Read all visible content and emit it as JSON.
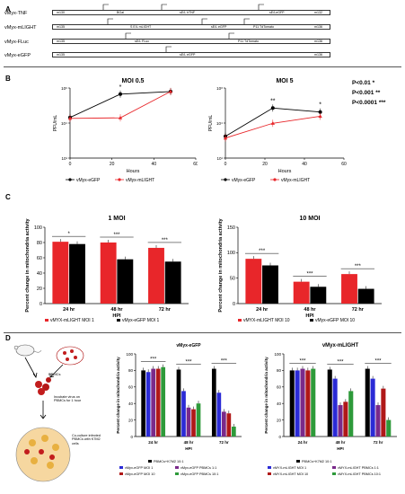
{
  "panel_letters": [
    "A",
    "B",
    "C",
    "D"
  ],
  "constructs": [
    {
      "name": "vMyx-TNF",
      "left_flank": "m130",
      "segments": [
        "BGal",
        "sE/L hTNF",
        "sE/LeGFP"
      ],
      "right_flank": "m132"
    },
    {
      "name": "vMyx-mLIGHT",
      "left_flank": "m135",
      "segments": [
        "S E/L mLIGHT",
        "sE/L eGFP",
        "P11 TdTomato"
      ],
      "right_flank": "m136"
    },
    {
      "name": "vMyx-FLuc",
      "left_flank": "m135",
      "segments": [
        "sE/L FLuc",
        "P11 TdTomato"
      ],
      "right_flank": "m136"
    },
    {
      "name": "vMyx-eGFP",
      "left_flank": "m135",
      "segments": [
        "sE/L eGFP"
      ],
      "right_flank": "m136"
    }
  ],
  "pvalues": [
    "P<0.01 *",
    "P<0.001 **",
    "P<0.0001 ***"
  ],
  "legend_b": [
    "vMyx-eGFP",
    "vMyx-mLIGHT"
  ],
  "legend_c_left": [
    "vMYX-mLIGHT MOI 1",
    "vMyx-eGFP MOI 1"
  ],
  "legend_c_right": [
    "vMYX-mLIGHT MOI 10",
    "vMyx-eGFP MOI 10"
  ],
  "legend_d_left": [
    "PBMCs+K7M2 10:1",
    "vMyx-eGFP MOI 1",
    "vMyx-eGFP PBMCs 1:1",
    "vMyx-eGFP MOI 10",
    "vMyx-eGFP PBMCs 10:1"
  ],
  "legend_d_right": [
    "PBMCs+K7M2 10:1",
    "vMYX-mLIGHT MOI 1",
    "vMYX-mLIGHT PBMCs 1:1",
    "vMYX-mLIGHT MOI 10",
    "vMYX-mLIGHT PBMCs 10:1"
  ],
  "schematic_d": {
    "pbmc": "PBMCs",
    "incubate": "Incubate virus on PBMCs for 1 hour",
    "coculture": "Co-culture infected PBMCs with K7M2 cells"
  },
  "colors": {
    "black": "#000000",
    "red": "#e8262a",
    "blue": "#2b2bd6",
    "purple": "#7a2a8a",
    "green": "#2e9a3a",
    "darkred": "#b01818",
    "grey": "#888888"
  },
  "chart_data": [
    {
      "type": "line",
      "title": "MOI 0.5",
      "xlabel": "Hours",
      "ylabel": "PFU/mL",
      "x": [
        0,
        24,
        48
      ],
      "xlim": [
        0,
        60
      ],
      "xticks": [
        0,
        20,
        40,
        60
      ],
      "ylim": [
        1,
        1000000
      ],
      "yscale": "log",
      "ytick_labels": [
        "10¹",
        "10⁴",
        "10⁶"
      ],
      "series": [
        {
          "name": "vMyx-eGFP",
          "values": [
            3000,
            300000,
            500000
          ]
        },
        {
          "name": "vMyx-mLIGHT",
          "values": [
            2500,
            2800,
            500000
          ]
        }
      ],
      "annotations": [
        {
          "x": 24,
          "text": "*"
        }
      ]
    },
    {
      "type": "line",
      "title": "MOI 5",
      "xlabel": "Hours",
      "ylabel": "PFU/mL",
      "x": [
        0,
        24,
        48
      ],
      "xlim": [
        0,
        60
      ],
      "xticks": [
        0,
        20,
        40,
        60
      ],
      "ylim": [
        10,
        100000000
      ],
      "yscale": "log",
      "ytick_labels": [
        "10¹",
        "10⁴",
        "10⁸"
      ],
      "series": [
        {
          "name": "vMyx-eGFP",
          "values": [
            1500,
            1000000,
            400000
          ]
        },
        {
          "name": "vMyx-mLIGHT",
          "values": [
            1000,
            30000,
            150000
          ]
        }
      ],
      "annotations": [
        {
          "x": 24,
          "text": "**"
        },
        {
          "x": 48,
          "text": "*"
        }
      ]
    },
    {
      "type": "bar",
      "title": "1 MOI",
      "xlabel": "HPI",
      "ylabel": "Percent change in mitochondria activity",
      "categories": [
        "24 hr",
        "48 hr",
        "72 hr"
      ],
      "ylim": [
        0,
        100
      ],
      "yticks": [
        0,
        20,
        40,
        60,
        80,
        100
      ],
      "series": [
        {
          "name": "vMYX-mLIGHT MOI 1",
          "values": [
            81,
            80,
            73
          ]
        },
        {
          "name": "vMyx-eGFP MOI 1",
          "values": [
            78,
            58,
            55
          ]
        }
      ],
      "annotations": [
        "*",
        "***",
        "***"
      ]
    },
    {
      "type": "bar",
      "title": "10 MOI",
      "xlabel": "HPI",
      "ylabel": "Percent change in mitochondria activity",
      "categories": [
        "24 hr",
        "48 hr",
        "72 hr"
      ],
      "ylim": [
        0,
        150
      ],
      "yticks": [
        0,
        50,
        100,
        150
      ],
      "series": [
        {
          "name": "vMYX-mLIGHT MOI 10",
          "values": [
            88,
            43,
            58
          ]
        },
        {
          "name": "vMyx-eGFP MOI 10",
          "values": [
            75,
            33,
            29
          ]
        }
      ],
      "annotations": [
        "***",
        "***",
        "***"
      ]
    },
    {
      "type": "bar",
      "title": "vMyx-eGFP",
      "xlabel": "HPI",
      "ylabel": "Percent change in mitochondria activity",
      "categories": [
        "24 hr",
        "48 hr",
        "72 hr"
      ],
      "ylim": [
        0,
        100
      ],
      "yticks": [
        0,
        20,
        40,
        60,
        80,
        100
      ],
      "series": [
        {
          "name": "PBMCs+K7M2 10:1",
          "values": [
            80,
            81,
            82
          ]
        },
        {
          "name": "vMyx-eGFP MOI 1",
          "values": [
            78,
            55,
            53
          ]
        },
        {
          "name": "vMyx-eGFP PBMCs 1:1",
          "values": [
            82,
            35,
            30
          ]
        },
        {
          "name": "vMyx-eGFP MOI 10",
          "values": [
            82,
            33,
            28
          ]
        },
        {
          "name": "vMyx-eGFP PBMCs 10:1",
          "values": [
            84,
            40,
            12
          ]
        }
      ],
      "annotations": [
        "***",
        "***",
        "***"
      ]
    },
    {
      "type": "bar",
      "title": "vMyx-mLIGHT",
      "xlabel": "HPI",
      "ylabel": "Percent change in mitochondria activity",
      "categories": [
        "24 hr",
        "48 hr",
        "72 hr"
      ],
      "ylim": [
        0,
        100
      ],
      "yticks": [
        0,
        20,
        40,
        60,
        80,
        100
      ],
      "series": [
        {
          "name": "PBMCs+K7M2 10:1",
          "values": [
            80,
            81,
            82
          ]
        },
        {
          "name": "vMYX-mLIGHT MOI 1",
          "values": [
            80,
            70,
            70
          ]
        },
        {
          "name": "vMYX-mLIGHT PBMCs 1:1",
          "values": [
            82,
            38,
            38
          ]
        },
        {
          "name": "vMYX-mLIGHT MOI 10",
          "values": [
            80,
            42,
            58
          ]
        },
        {
          "name": "vMYX-mLIGHT PBMCs 10:1",
          "values": [
            82,
            55,
            20
          ]
        }
      ],
      "annotations": [
        "***",
        "***",
        "***"
      ]
    }
  ]
}
